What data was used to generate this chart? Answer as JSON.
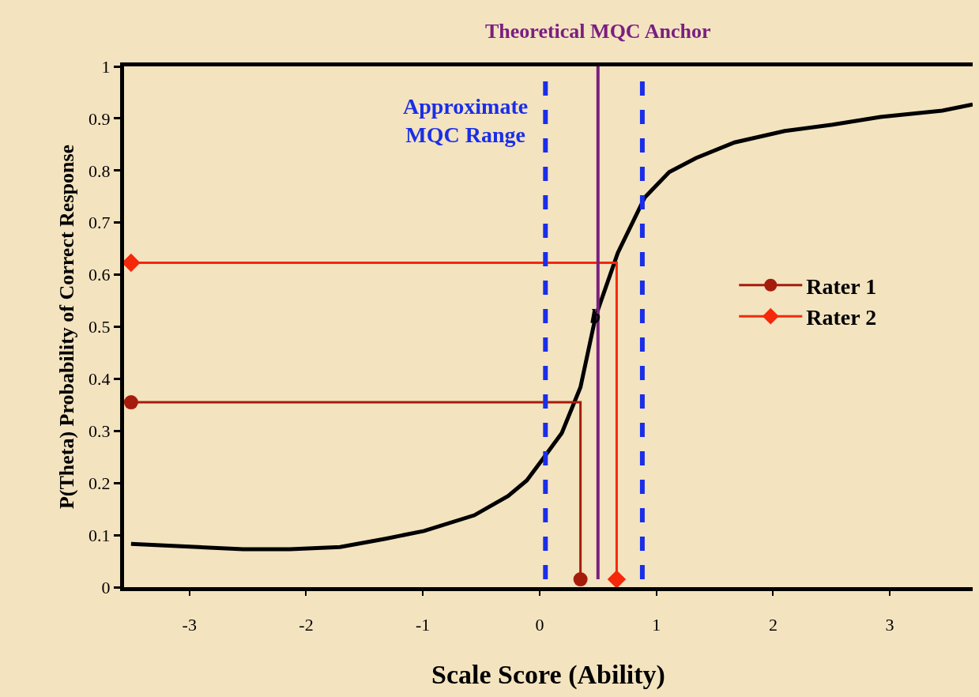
{
  "chart_data": {
    "type": "line",
    "xlabel": "Scale Score (Ability)",
    "ylabel": "P(Theta) Probability of Correct Response",
    "x": [
      -3.5,
      -2.54,
      -2.14,
      -1.71,
      -1.32,
      -0.99,
      -0.56,
      -0.27,
      -0.11,
      0.02,
      0.19,
      0.35,
      0.48,
      0.67,
      0.9,
      1.11,
      1.34,
      1.67,
      2.1,
      2.51,
      2.92,
      3.45,
      3.71
    ],
    "series": [
      {
        "color": "#000000",
        "marker": "none",
        "values": [
          0.083,
          0.073,
          0.073,
          0.077,
          0.093,
          0.108,
          0.138,
          0.175,
          0.205,
          0.244,
          0.296,
          0.384,
          0.52,
          0.642,
          0.748,
          0.797,
          0.824,
          0.854,
          0.876,
          0.888,
          0.903,
          0.915,
          0.927
        ]
      },
      {
        "name": "Rater 1",
        "type": "step",
        "color": "#a51c0c",
        "marker": "circle",
        "x": [
          -3.5,
          0.35
        ],
        "values": [
          0.355,
          0.015
        ]
      },
      {
        "name": "Rater 2",
        "type": "step",
        "color": "#f5280a",
        "marker": "diamond",
        "x": [
          -3.5,
          0.66
        ],
        "values": [
          0.623,
          0.015
        ]
      }
    ],
    "xlim": [
      -3.56,
      3.71
    ],
    "xticks": [
      -3,
      -2,
      -1,
      0,
      1,
      2,
      3
    ],
    "ylim": [
      0,
      1
    ],
    "yticks": [
      0,
      0.1,
      0.2,
      0.3,
      0.4,
      0.5,
      0.6,
      0.7,
      0.8,
      0.9,
      1
    ],
    "ref_lines": [
      {
        "axis": "x",
        "value": 0.05,
        "label": "Approximate\nMQC Range",
        "color": "#1a2ee8",
        "line_style": "dashed"
      },
      {
        "axis": "x",
        "value": 0.88,
        "label": null,
        "color": "#1a2ee8",
        "line_style": "dashed"
      },
      {
        "axis": "x",
        "value": 0.5,
        "label": "Theoretical MQC Anchor",
        "color": "#7b1e80",
        "line_style": "solid"
      }
    ],
    "annotations": [
      "b"
    ],
    "legend": "right",
    "grid": false
  }
}
